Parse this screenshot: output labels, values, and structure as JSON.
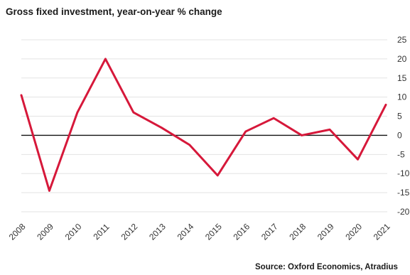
{
  "title": "Gross fixed investment, year-on-year % change",
  "source": "Source: Oxford Economics, Atradius",
  "colors": {
    "series": "#d6183a",
    "zero_line": "#111111",
    "grid": "#e3e3e3"
  },
  "chart_data": {
    "type": "line",
    "title": "Gross fixed investment, year-on-year % change",
    "xlabel": "",
    "ylabel": "",
    "x": [
      "2008",
      "2009",
      "2010",
      "2011",
      "2012",
      "2013",
      "2014",
      "2015",
      "2016",
      "2017",
      "2018",
      "2019",
      "2020",
      "2021"
    ],
    "series": [
      {
        "values": [
          10.5,
          -14.5,
          6,
          20,
          6,
          2,
          -2.5,
          -10.5,
          1,
          4.5,
          0,
          1.5,
          -6.3,
          8
        ]
      }
    ],
    "ylim": [
      -20,
      25
    ],
    "yticks": [
      25,
      20,
      15,
      10,
      5,
      0,
      -5,
      -10,
      -15,
      -20
    ],
    "ytick_labels": [
      "25",
      "20",
      "15",
      "10",
      "5",
      "0",
      "-5",
      "-10",
      "-15",
      "-20"
    ],
    "y_axis_side": "right",
    "grid": true,
    "legend": "none"
  }
}
